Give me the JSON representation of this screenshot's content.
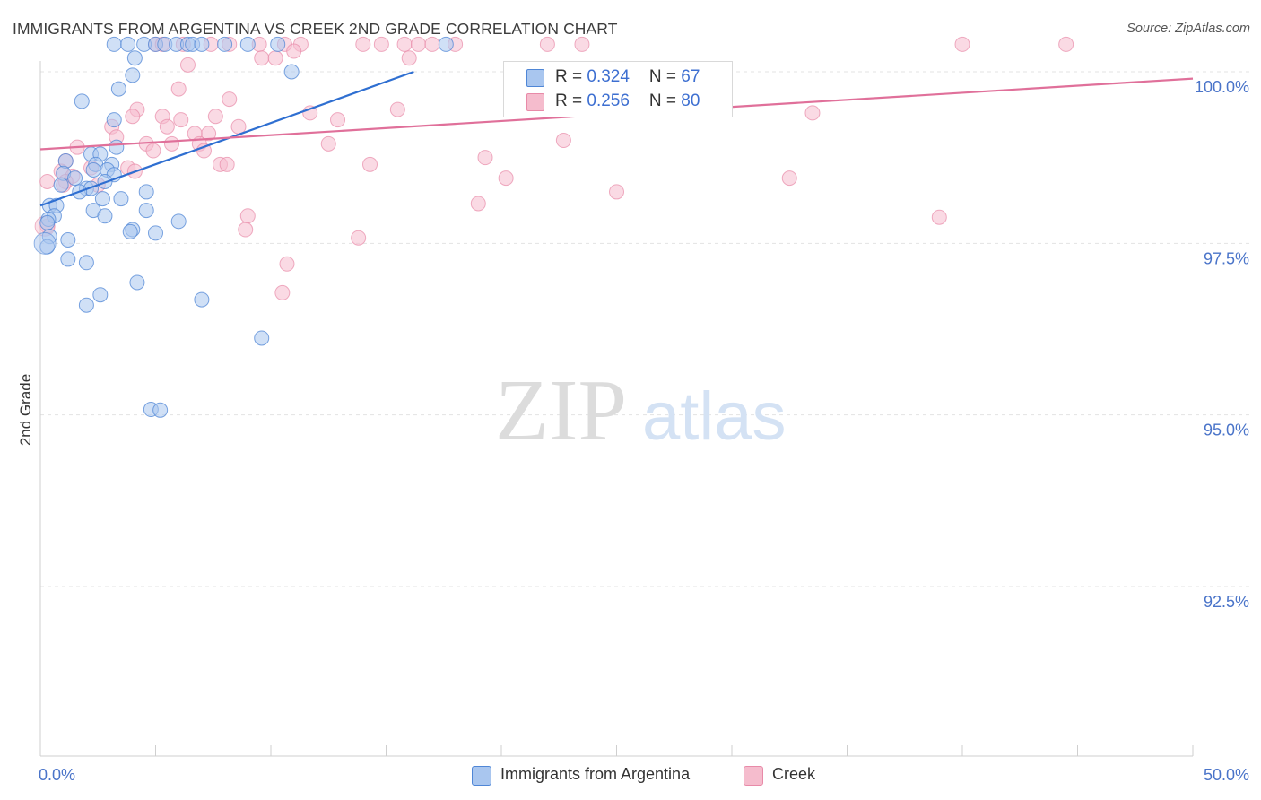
{
  "title": "IMMIGRANTS FROM ARGENTINA VS CREEK 2ND GRADE CORRELATION CHART",
  "source": "Source: ZipAtlas.com",
  "watermark": {
    "zip": "ZIP",
    "atlas": "atlas"
  },
  "colors": {
    "blue_fill": "#a9c6ef",
    "blue_stroke": "#4f86d6",
    "blue_line": "#2f6fd1",
    "pink_fill": "#f5bccd",
    "pink_stroke": "#e88aa8",
    "pink_line": "#e0709a",
    "axis_label": "#4a74c9",
    "grid": "#e3e3e3"
  },
  "legend_top": {
    "rows": [
      {
        "r_label": "R = ",
        "r_value": "0.324",
        "n_label": "N = ",
        "n_value": "67"
      },
      {
        "r_label": "R = ",
        "r_value": "0.256",
        "n_label": "N = ",
        "n_value": "80"
      }
    ]
  },
  "chart_data": {
    "type": "scatter",
    "title": "IMMIGRANTS FROM ARGENTINA VS CREEK 2ND GRADE CORRELATION CHART",
    "xlabel": "",
    "ylabel": "2nd Grade",
    "xlim": [
      0,
      50
    ],
    "ylim": [
      90.2,
      100.5
    ],
    "x_tick_labels": [
      "0.0%",
      "50.0%"
    ],
    "y_ticks": [
      92.5,
      95.0,
      97.5,
      100.0
    ],
    "y_tick_labels": [
      "92.5%",
      "95.0%",
      "97.5%",
      "100.0%"
    ],
    "grid": true,
    "legend_position": "bottom",
    "series": [
      {
        "name": "Immigrants from Argentina",
        "r": 0.324,
        "n": 67,
        "trend": [
          [
            0.0,
            98.05
          ],
          [
            16.2,
            100.0
          ]
        ],
        "points": [
          [
            3.2,
            100.4
          ],
          [
            3.8,
            100.4
          ],
          [
            4.5,
            100.4
          ],
          [
            5.0,
            100.4
          ],
          [
            5.4,
            100.4
          ],
          [
            5.9,
            100.4
          ],
          [
            6.4,
            100.4
          ],
          [
            6.6,
            100.4
          ],
          [
            7.0,
            100.4
          ],
          [
            8.0,
            100.4
          ],
          [
            9.0,
            100.4
          ],
          [
            10.3,
            100.4
          ],
          [
            17.6,
            100.4
          ],
          [
            10.9,
            100.0
          ],
          [
            4.1,
            100.2
          ],
          [
            4.0,
            99.95
          ],
          [
            3.4,
            99.75
          ],
          [
            1.8,
            99.57
          ],
          [
            3.2,
            99.3
          ],
          [
            3.3,
            98.9
          ],
          [
            2.2,
            98.8
          ],
          [
            2.6,
            98.8
          ],
          [
            1.1,
            98.7
          ],
          [
            2.4,
            98.65
          ],
          [
            3.1,
            98.65
          ],
          [
            2.3,
            98.57
          ],
          [
            2.9,
            98.57
          ],
          [
            1.0,
            98.52
          ],
          [
            3.2,
            98.5
          ],
          [
            1.5,
            98.45
          ],
          [
            2.8,
            98.4
          ],
          [
            0.9,
            98.35
          ],
          [
            2.0,
            98.3
          ],
          [
            2.2,
            98.3
          ],
          [
            1.7,
            98.25
          ],
          [
            4.6,
            98.25
          ],
          [
            3.5,
            98.15
          ],
          [
            2.7,
            98.15
          ],
          [
            0.4,
            98.05
          ],
          [
            0.7,
            98.05
          ],
          [
            4.6,
            97.98
          ],
          [
            2.3,
            97.98
          ],
          [
            2.8,
            97.9
          ],
          [
            0.6,
            97.9
          ],
          [
            0.35,
            97.85
          ],
          [
            0.3,
            97.8
          ],
          [
            6.0,
            97.82
          ],
          [
            4.0,
            97.7
          ],
          [
            3.9,
            97.67
          ],
          [
            5.0,
            97.65
          ],
          [
            0.4,
            97.6
          ],
          [
            1.2,
            97.55
          ],
          [
            0.3,
            97.45
          ],
          [
            1.2,
            97.27
          ],
          [
            2.0,
            97.22
          ],
          [
            4.2,
            96.93
          ],
          [
            2.6,
            96.75
          ],
          [
            7.0,
            96.68
          ],
          [
            2.0,
            96.6
          ],
          [
            9.6,
            96.12
          ],
          [
            4.8,
            95.08
          ],
          [
            5.2,
            95.07
          ]
        ]
      },
      {
        "name": "Creek",
        "r": 0.256,
        "n": 80,
        "trend": [
          [
            0.0,
            98.87
          ],
          [
            50.0,
            99.9
          ]
        ],
        "points": [
          [
            5.0,
            100.4
          ],
          [
            5.3,
            100.4
          ],
          [
            6.2,
            100.4
          ],
          [
            7.4,
            100.4
          ],
          [
            8.2,
            100.4
          ],
          [
            9.5,
            100.4
          ],
          [
            10.6,
            100.4
          ],
          [
            11.3,
            100.4
          ],
          [
            14.0,
            100.4
          ],
          [
            14.8,
            100.4
          ],
          [
            15.8,
            100.4
          ],
          [
            16.4,
            100.4
          ],
          [
            17.0,
            100.4
          ],
          [
            18.0,
            100.4
          ],
          [
            22.0,
            100.4
          ],
          [
            23.5,
            100.4
          ],
          [
            40.0,
            100.4
          ],
          [
            44.5,
            100.4
          ],
          [
            9.6,
            100.2
          ],
          [
            10.2,
            100.2
          ],
          [
            11.0,
            100.3
          ],
          [
            16.0,
            100.2
          ],
          [
            6.4,
            100.1
          ],
          [
            6.0,
            99.75
          ],
          [
            8.2,
            99.6
          ],
          [
            4.2,
            99.45
          ],
          [
            11.7,
            99.4
          ],
          [
            15.5,
            99.45
          ],
          [
            33.5,
            99.4
          ],
          [
            5.3,
            99.35
          ],
          [
            6.1,
            99.3
          ],
          [
            7.6,
            99.35
          ],
          [
            4.0,
            99.35
          ],
          [
            12.9,
            99.3
          ],
          [
            3.1,
            99.2
          ],
          [
            5.5,
            99.2
          ],
          [
            8.6,
            99.2
          ],
          [
            7.3,
            99.1
          ],
          [
            6.7,
            99.1
          ],
          [
            3.3,
            99.05
          ],
          [
            22.7,
            99.0
          ],
          [
            6.9,
            98.95
          ],
          [
            5.7,
            98.95
          ],
          [
            4.6,
            98.95
          ],
          [
            12.5,
            98.95
          ],
          [
            1.6,
            98.9
          ],
          [
            7.1,
            98.85
          ],
          [
            4.9,
            98.85
          ],
          [
            1.1,
            98.7
          ],
          [
            7.8,
            98.65
          ],
          [
            8.1,
            98.65
          ],
          [
            14.3,
            98.65
          ],
          [
            19.3,
            98.75
          ],
          [
            2.2,
            98.6
          ],
          [
            3.8,
            98.6
          ],
          [
            4.1,
            98.55
          ],
          [
            0.9,
            98.55
          ],
          [
            1.4,
            98.48
          ],
          [
            20.2,
            98.45
          ],
          [
            32.5,
            98.45
          ],
          [
            1.1,
            98.4
          ],
          [
            0.3,
            98.4
          ],
          [
            2.5,
            98.35
          ],
          [
            1.0,
            98.35
          ],
          [
            25.0,
            98.25
          ],
          [
            19.0,
            98.08
          ],
          [
            9.0,
            97.9
          ],
          [
            39.0,
            97.88
          ],
          [
            8.9,
            97.7
          ],
          [
            0.3,
            97.75
          ],
          [
            13.8,
            97.58
          ],
          [
            10.7,
            97.2
          ],
          [
            10.5,
            96.78
          ]
        ]
      }
    ]
  }
}
